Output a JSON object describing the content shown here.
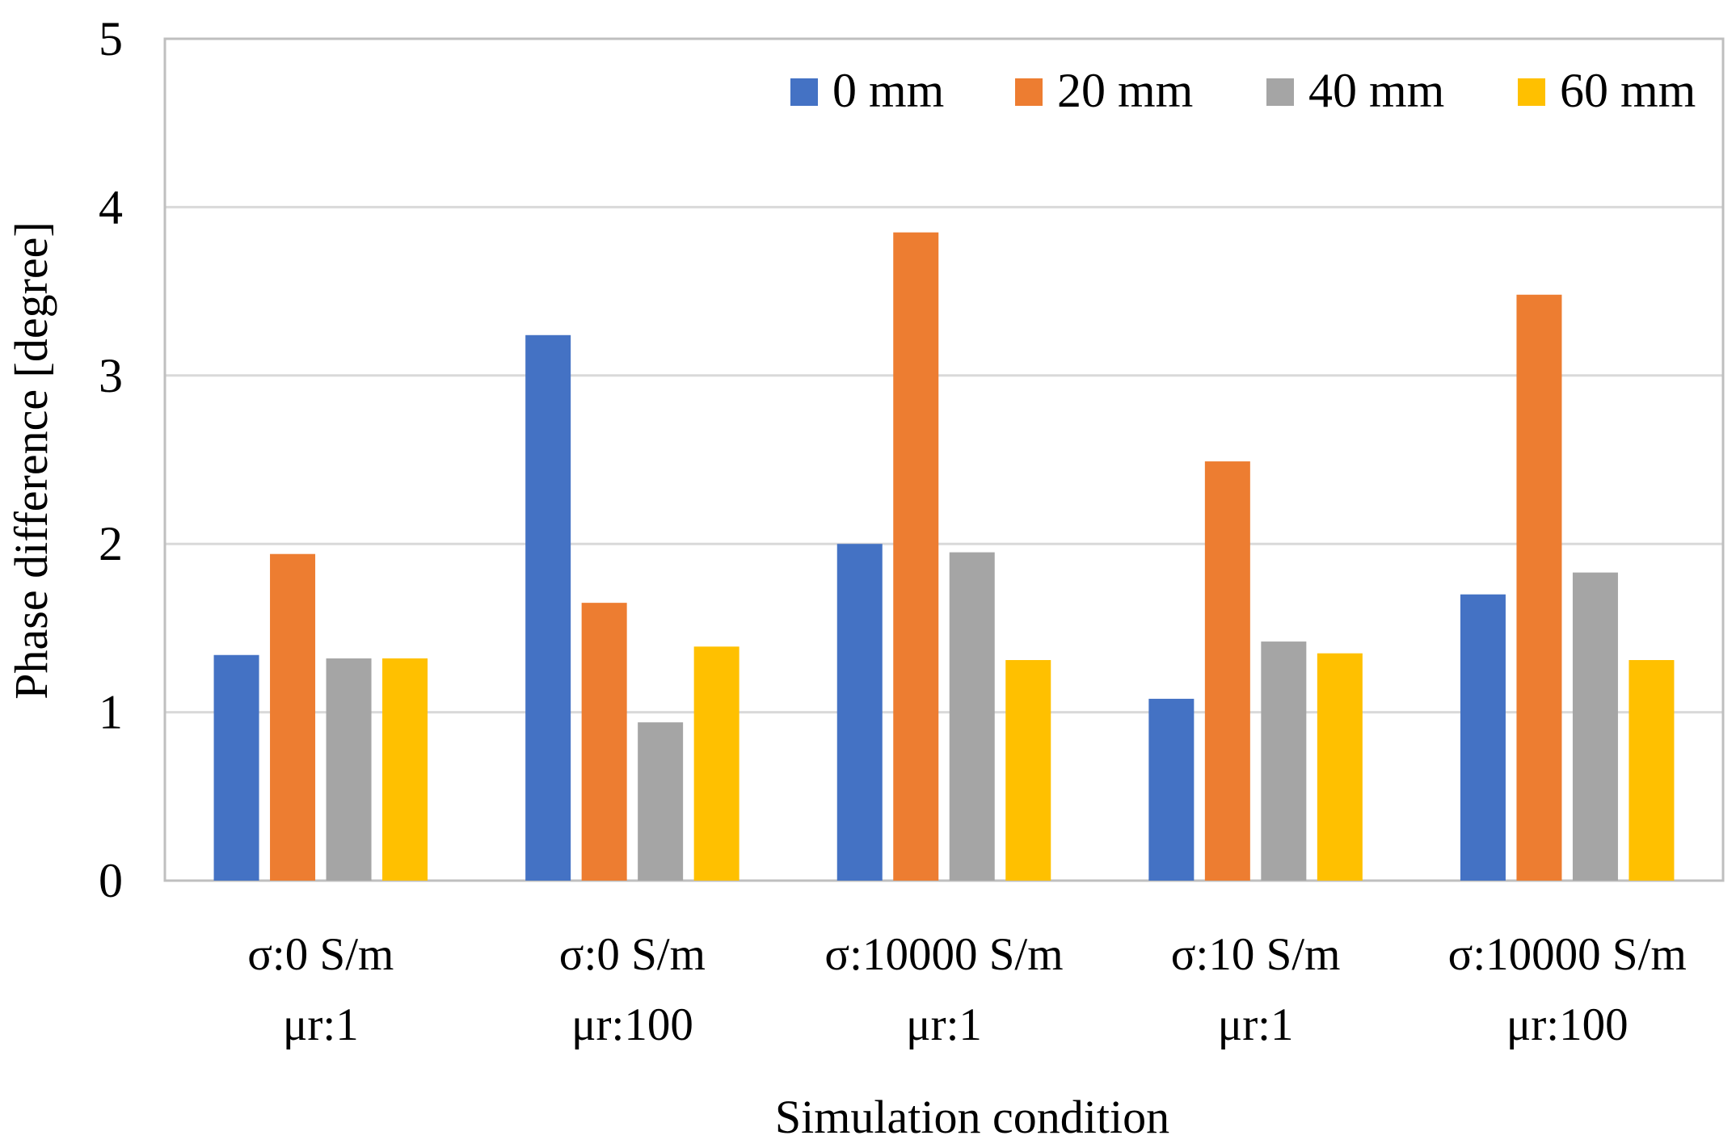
{
  "chart_data": {
    "type": "bar",
    "title": "",
    "xlabel": "Simulation condition",
    "ylabel": "Phase difference [degree]",
    "ylim": [
      0,
      5
    ],
    "yticks": [
      0,
      1,
      2,
      3,
      4,
      5
    ],
    "grid": true,
    "legend_position": "top-right",
    "categories": [
      {
        "line1": "σ:0 S/m",
        "line2": "μr:1"
      },
      {
        "line1": "σ:0 S/m",
        "line2": "μr:100"
      },
      {
        "line1": "σ:10000 S/m",
        "line2": "μr:1"
      },
      {
        "line1": "σ:10 S/m",
        "line2": "μr:1"
      },
      {
        "line1": "σ:10000 S/m",
        "line2": "μr:100"
      }
    ],
    "series": [
      {
        "name": "0 mm",
        "color": "#4472C4",
        "values": [
          1.34,
          3.24,
          2.0,
          1.08,
          1.7
        ]
      },
      {
        "name": "20 mm",
        "color": "#ED7D31",
        "values": [
          1.94,
          1.65,
          3.85,
          2.49,
          3.48
        ]
      },
      {
        "name": "40 mm",
        "color": "#A5A5A5",
        "values": [
          1.32,
          0.94,
          1.95,
          1.42,
          1.83
        ]
      },
      {
        "name": "60 mm",
        "color": "#FFC000",
        "values": [
          1.32,
          1.39,
          1.31,
          1.35,
          1.31
        ]
      }
    ]
  }
}
